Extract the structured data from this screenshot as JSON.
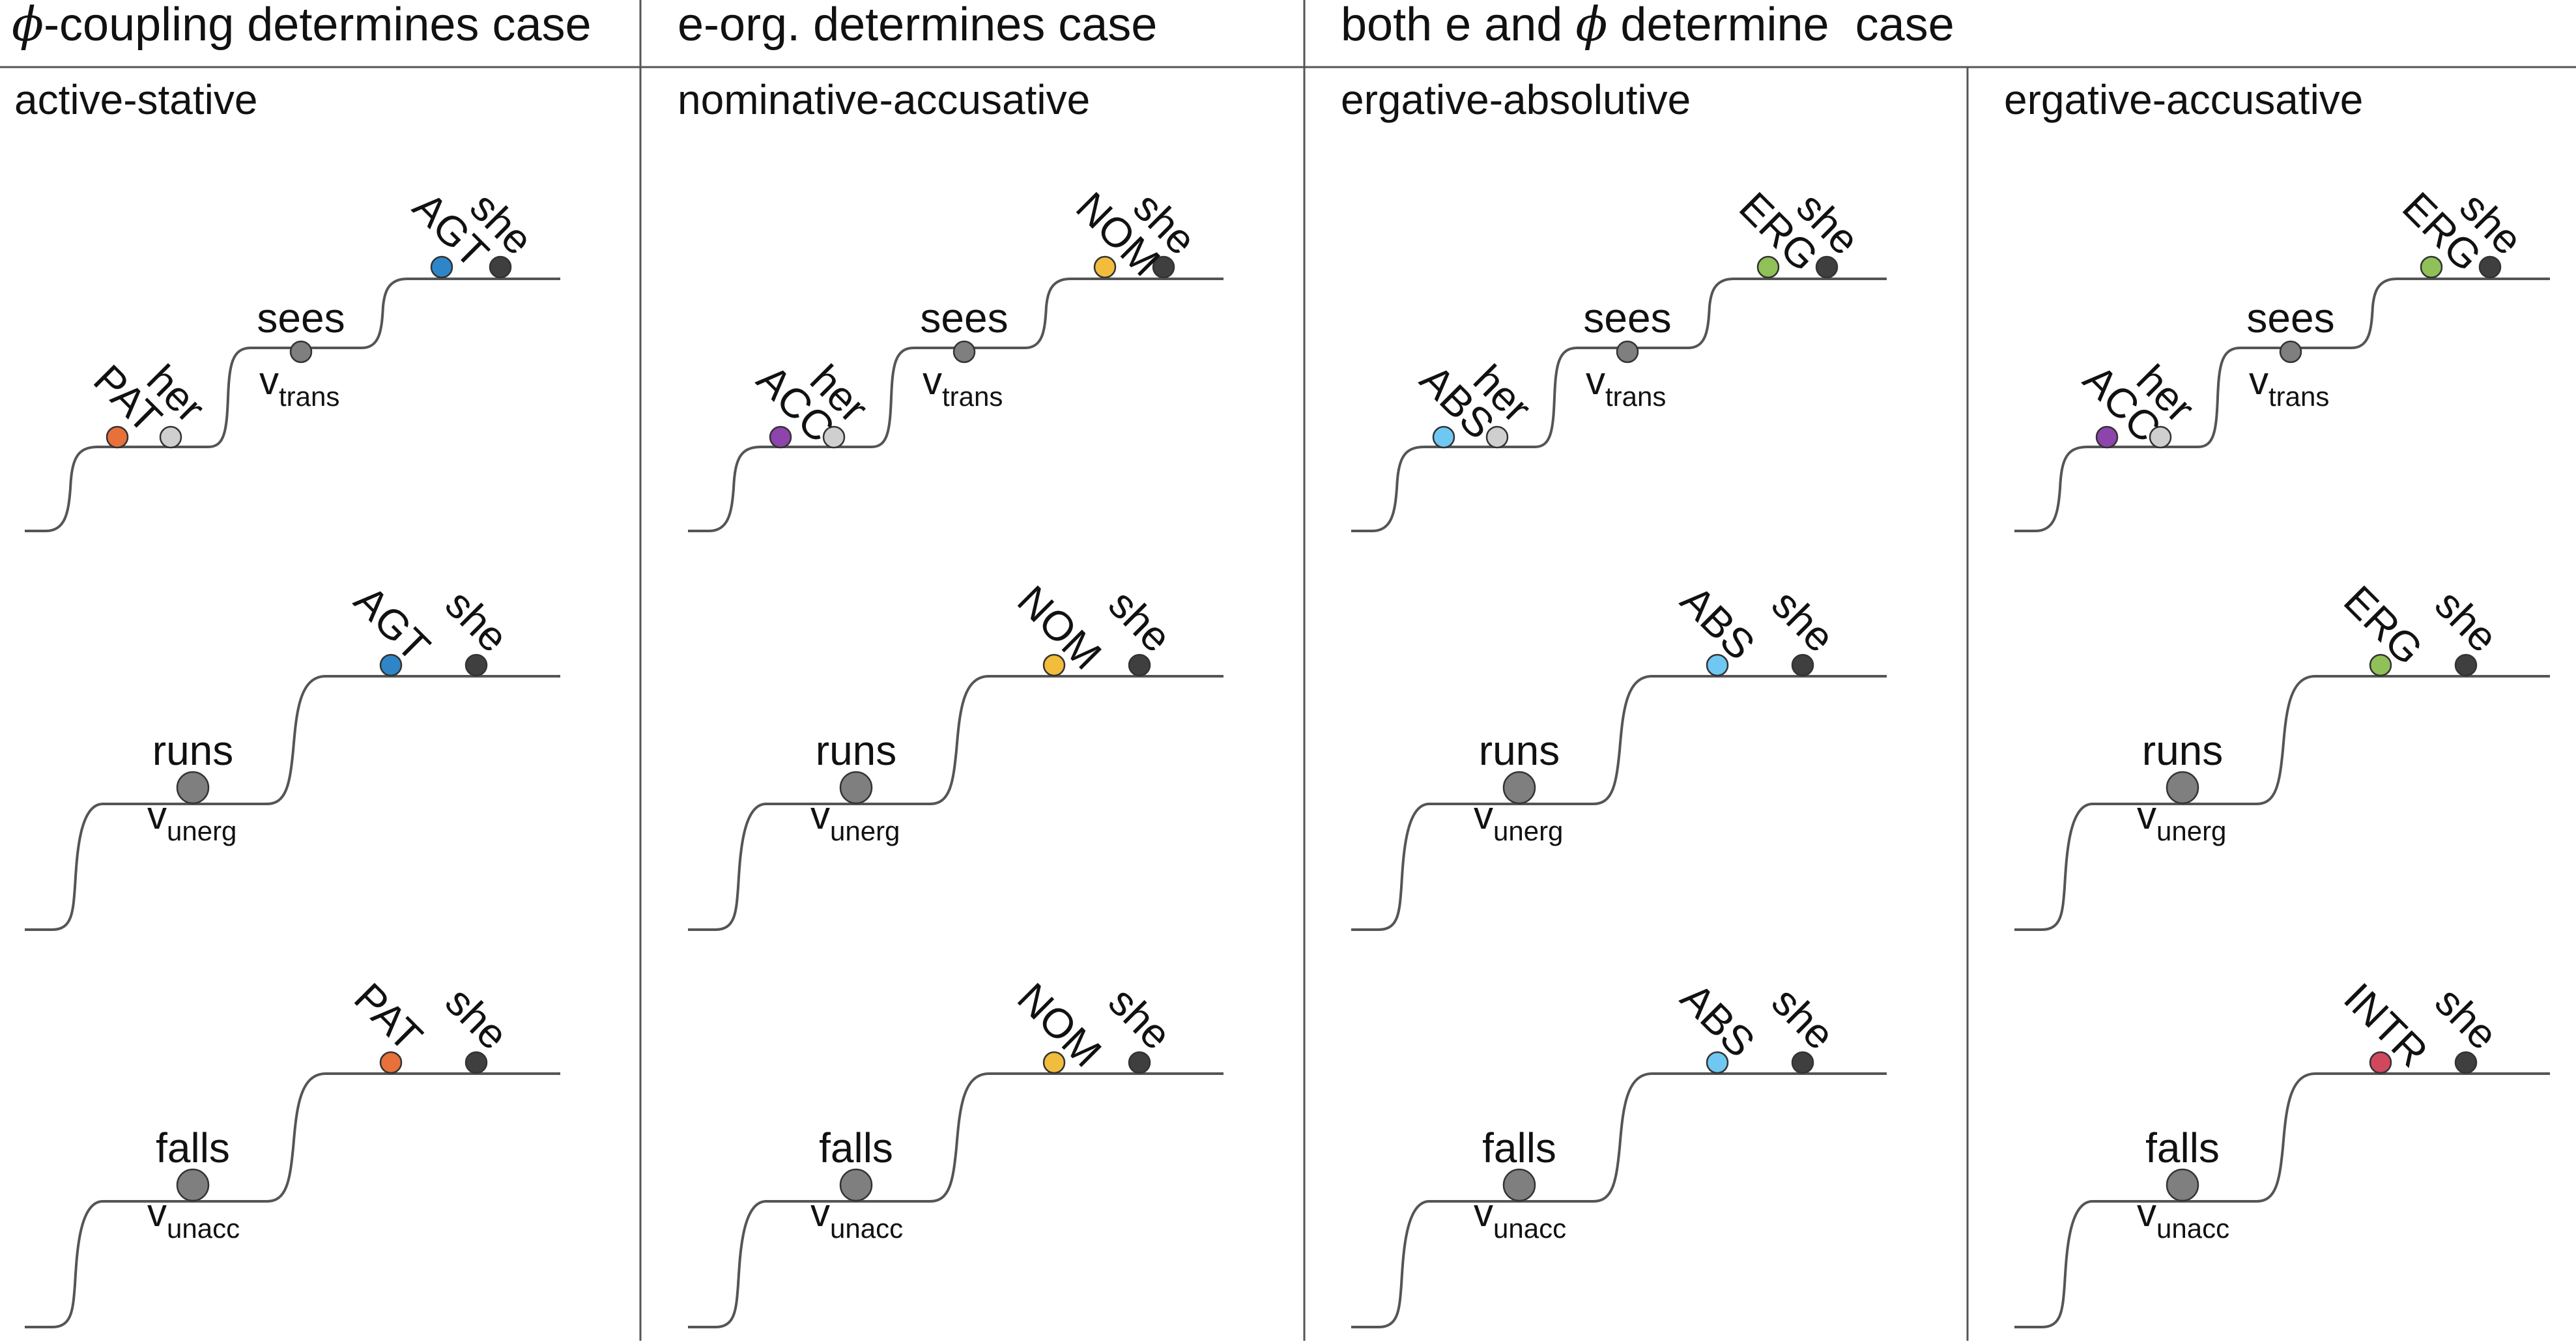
{
  "headers": [
    {
      "prefix": "",
      "phi": "ϕ",
      "suffix": "-coupling determines case"
    },
    {
      "prefix": "e-org. determines case",
      "phi": "",
      "suffix": ""
    },
    {
      "prefix": "both e and ",
      "phi": "ϕ",
      "suffix": " determine  case"
    }
  ],
  "colors": {
    "line": "#555555",
    "agent_dark": "#3f3f3f",
    "verb": "#7f7f7f",
    "her": "#cfcfcf",
    "AGT": "#2e86c8",
    "PAT": "#e8703a",
    "ACC": "#8e44ad",
    "NOM": "#f2bd3c",
    "ERG": "#8fc158",
    "ABS": "#6fc8f2",
    "INTR": "#d1485e"
  },
  "panels": [
    {
      "title": "active-stative",
      "rows": [
        {
          "type": "trans",
          "verb": "sees",
          "v": "v",
          "sub": "trans",
          "low_role": "PAT",
          "low_color": "PAT",
          "obj": "her",
          "high_role": "AGT",
          "high_color": "AGT",
          "subj": "she"
        },
        {
          "type": "intr",
          "verb": "runs",
          "v": "v",
          "sub": "unerg",
          "high_role": "AGT",
          "high_color": "AGT",
          "subj": "she"
        },
        {
          "type": "intr",
          "verb": "falls",
          "v": "v",
          "sub": "unacc",
          "high_role": "PAT",
          "high_color": "PAT",
          "subj": "she"
        }
      ]
    },
    {
      "title": "nominative-accusative",
      "rows": [
        {
          "type": "trans",
          "verb": "sees",
          "v": "v",
          "sub": "trans",
          "low_role": "ACC",
          "low_color": "ACC",
          "obj": "her",
          "high_role": "NOM",
          "high_color": "NOM",
          "subj": "she"
        },
        {
          "type": "intr",
          "verb": "runs",
          "v": "v",
          "sub": "unerg",
          "high_role": "NOM",
          "high_color": "NOM",
          "subj": "she"
        },
        {
          "type": "intr",
          "verb": "falls",
          "v": "v",
          "sub": "unacc",
          "high_role": "NOM",
          "high_color": "NOM",
          "subj": "she"
        }
      ]
    },
    {
      "title": "ergative-absolutive",
      "rows": [
        {
          "type": "trans",
          "verb": "sees",
          "v": "v",
          "sub": "trans",
          "low_role": "ABS",
          "low_color": "ABS",
          "obj": "her",
          "high_role": "ERG",
          "high_color": "ERG",
          "subj": "she"
        },
        {
          "type": "intr",
          "verb": "runs",
          "v": "v",
          "sub": "unerg",
          "high_role": "ABS",
          "high_color": "ABS",
          "subj": "she"
        },
        {
          "type": "intr",
          "verb": "falls",
          "v": "v",
          "sub": "unacc",
          "high_role": "ABS",
          "high_color": "ABS",
          "subj": "she"
        }
      ]
    },
    {
      "title": "ergative-accusative",
      "rows": [
        {
          "type": "trans",
          "verb": "sees",
          "v": "v",
          "sub": "trans",
          "low_role": "ACC",
          "low_color": "ACC",
          "obj": "her",
          "high_role": "ERG",
          "high_color": "ERG",
          "subj": "she"
        },
        {
          "type": "intr",
          "verb": "runs",
          "v": "v",
          "sub": "unerg",
          "high_role": "ERG",
          "high_color": "ERG",
          "subj": "she"
        },
        {
          "type": "intr",
          "verb": "falls",
          "v": "v",
          "sub": "unacc",
          "high_role": "INTR",
          "high_color": "INTR",
          "subj": "she"
        }
      ]
    }
  ]
}
